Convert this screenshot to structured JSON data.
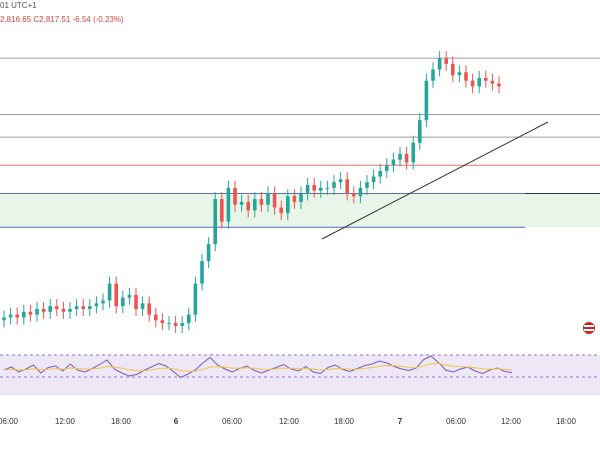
{
  "header": {
    "timezone_fragment": "01 UTC+1",
    "ohlc_fragment": "2,816.65  C2,817.51  -6.54 (-0.23%)"
  },
  "icons": [
    "flag-icon"
  ],
  "colors": {
    "up": "#26a69a",
    "down": "#ef5350",
    "resistance_line": "#9e9e9e",
    "price_line": "#e57373",
    "support_zone_fill": "#e8f5e9",
    "support_zone_border": "#5c6bc0",
    "trendline": "#333333",
    "rsi_line": "#7e57c2",
    "rsi_signal": "#f5c542",
    "rsi_band": "#ede7f6"
  },
  "chart_data": {
    "type": "candlestick",
    "title": "",
    "xlabel": "",
    "ylabel": "",
    "x_tick_labels": [
      "06:00",
      "12:00",
      "18:00",
      "6",
      "06:00",
      "12:00",
      "18:00",
      "7",
      "06:00",
      "12:00",
      "18:00"
    ],
    "bold_ticks": [
      "6",
      "7"
    ],
    "price_levels": {
      "resistance": [
        100,
        80,
        72
      ],
      "last_price_line": 62,
      "support_zone": [
        52,
        40
      ]
    },
    "candles_close": [
      8,
      9,
      8,
      10,
      9,
      11,
      10,
      12,
      11,
      10,
      11,
      12,
      11,
      12,
      13,
      14,
      20,
      12,
      15,
      16,
      11,
      13,
      9,
      7,
      6,
      6,
      5,
      6,
      9,
      20,
      28,
      34,
      50,
      42,
      54,
      48,
      49,
      46,
      50,
      48,
      52,
      47,
      45,
      51,
      49,
      52,
      55,
      53,
      54,
      54,
      56,
      57,
      52,
      51,
      54,
      56,
      58,
      60,
      62,
      64,
      66,
      63,
      70,
      78,
      92,
      96,
      100,
      98,
      94,
      95,
      92,
      90,
      93,
      92,
      91,
      90
    ],
    "series": [
      {
        "name": "",
        "values": [
          100,
          80,
          72,
          62,
          52,
          40
        ]
      }
    ],
    "rsi": {
      "values": [
        50,
        56,
        46,
        52,
        60,
        44,
        55,
        58,
        48,
        62,
        50,
        46,
        53,
        61,
        70,
        52,
        44,
        38,
        41,
        49,
        56,
        63,
        58,
        47,
        35,
        42,
        50,
        64,
        75,
        60,
        52,
        46,
        53,
        58,
        49,
        44,
        50,
        55,
        61,
        52,
        48,
        57,
        46,
        43,
        55,
        60,
        51,
        47,
        53,
        59,
        62,
        68,
        64,
        57,
        52,
        49,
        54,
        71,
        78,
        65,
        50,
        46,
        52,
        56,
        48,
        43,
        50,
        54,
        47,
        45
      ]
    }
  }
}
